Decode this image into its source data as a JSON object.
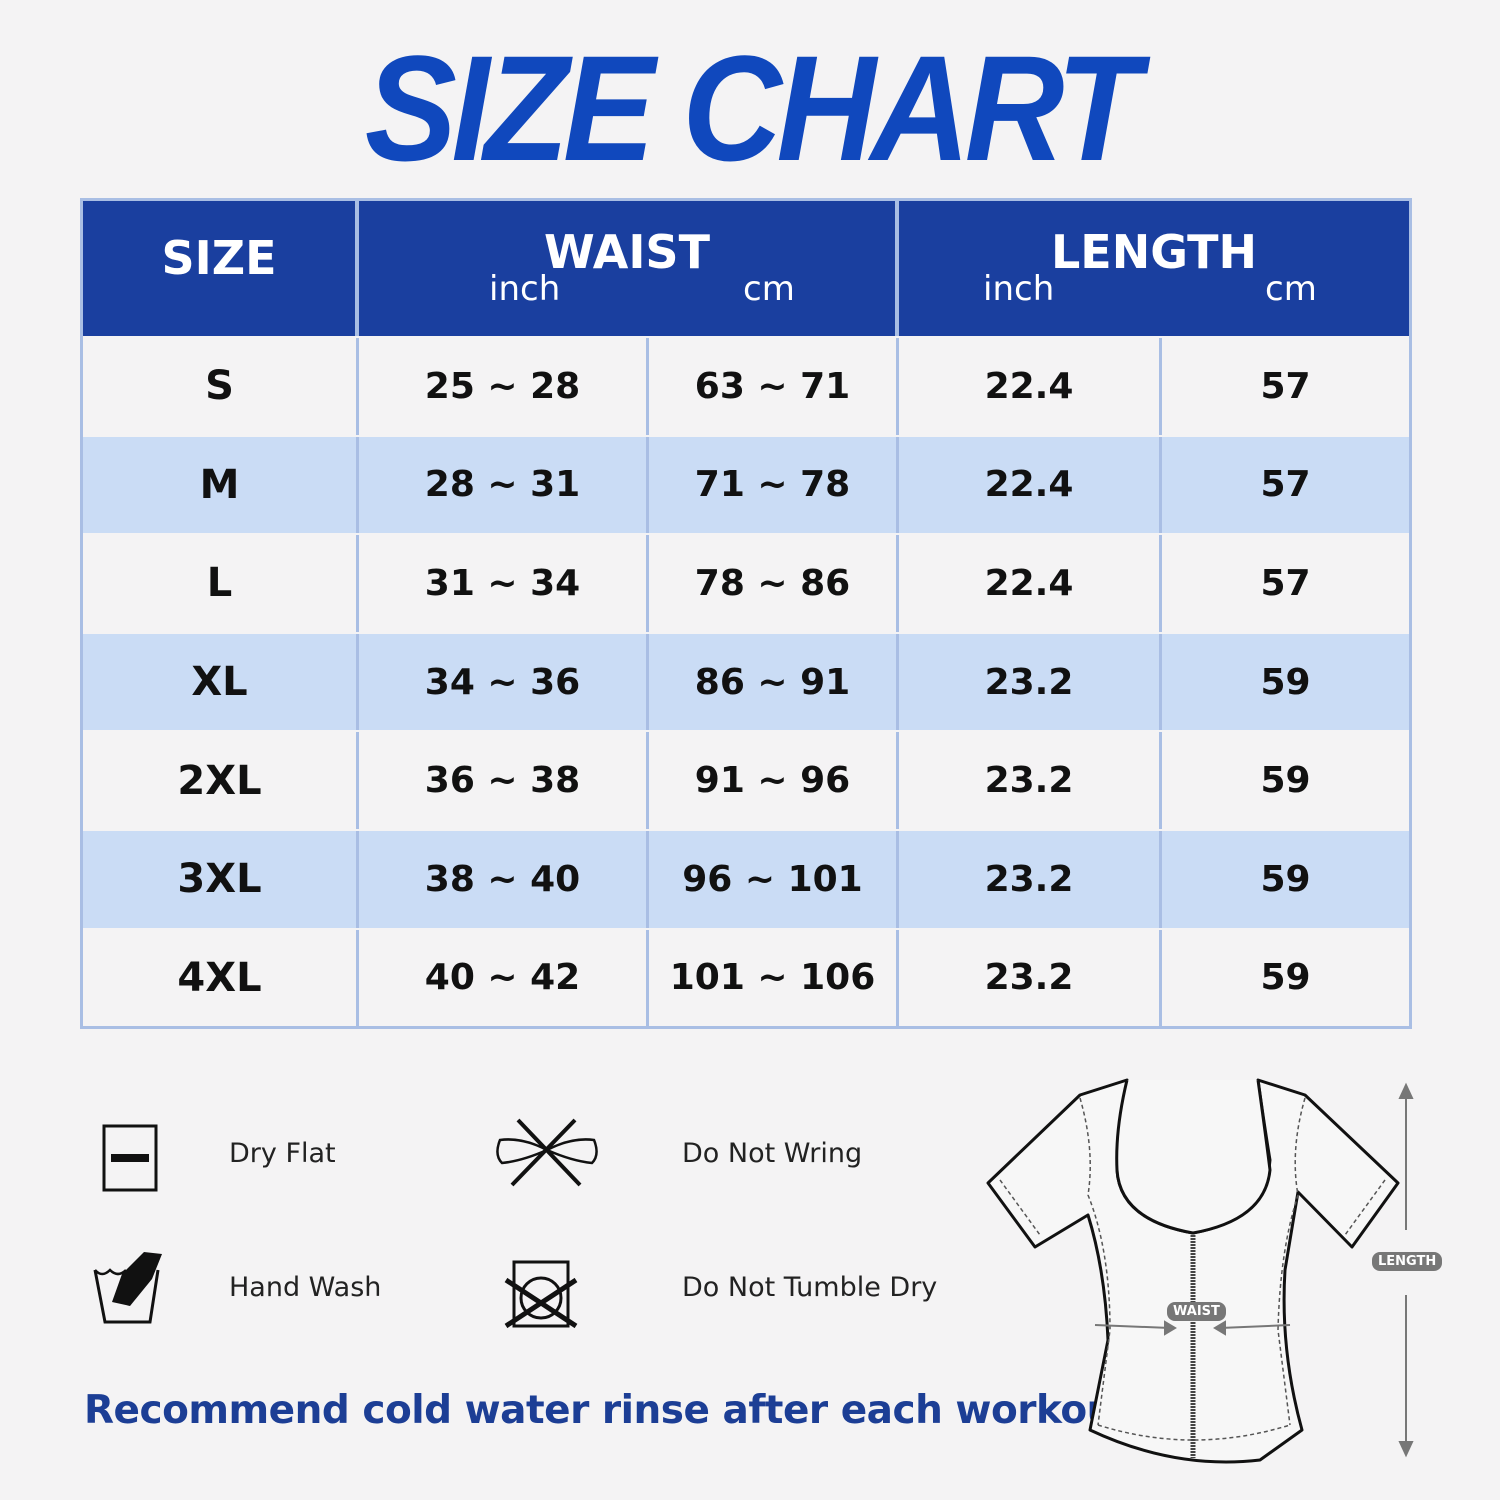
{
  "title": "SIZE CHART",
  "table": {
    "headers": {
      "size": "SIZE",
      "waist": "WAIST",
      "length": "LENGTH",
      "inch": "inch",
      "cm": "cm"
    },
    "rows": [
      {
        "size": "S",
        "waist_inch": "25 ~ 28",
        "waist_cm": "63 ~ 71",
        "length_inch": "22.4",
        "length_cm": "57"
      },
      {
        "size": "M",
        "waist_inch": "28 ~ 31",
        "waist_cm": "71 ~ 78",
        "length_inch": "22.4",
        "length_cm": "57"
      },
      {
        "size": "L",
        "waist_inch": "31 ~ 34",
        "waist_cm": "78 ~ 86",
        "length_inch": "22.4",
        "length_cm": "57"
      },
      {
        "size": "XL",
        "waist_inch": "34 ~ 36",
        "waist_cm": "86 ~ 91",
        "length_inch": "23.2",
        "length_cm": "59"
      },
      {
        "size": "2XL",
        "waist_inch": "36 ~ 38",
        "waist_cm": "91 ~ 96",
        "length_inch": "23.2",
        "length_cm": "59"
      },
      {
        "size": "3XL",
        "waist_inch": "38 ~ 40",
        "waist_cm": "96 ~ 101",
        "length_inch": "23.2",
        "length_cm": "59"
      },
      {
        "size": "4XL",
        "waist_inch": "40 ~ 42",
        "waist_cm": "101 ~ 106",
        "length_inch": "23.2",
        "length_cm": "59"
      }
    ]
  },
  "care": [
    {
      "label": "Dry Flat",
      "icon": "dry-flat-icon"
    },
    {
      "label": "Do Not Wring",
      "icon": "do-not-wring-icon"
    },
    {
      "label": "Hand Wash",
      "icon": "hand-wash-icon"
    },
    {
      "label": "Do Not Tumble Dry",
      "icon": "do-not-tumble-dry-icon"
    }
  ],
  "note": "Recommend cold water rinse after each workout.",
  "diagram": {
    "waist_label": "WAIST",
    "length_label": "LENGTH"
  },
  "colors": {
    "header": "#1a3f9f",
    "alt_row": "#cadcf5",
    "title": "#1048bd",
    "border": "#a9bee4"
  }
}
